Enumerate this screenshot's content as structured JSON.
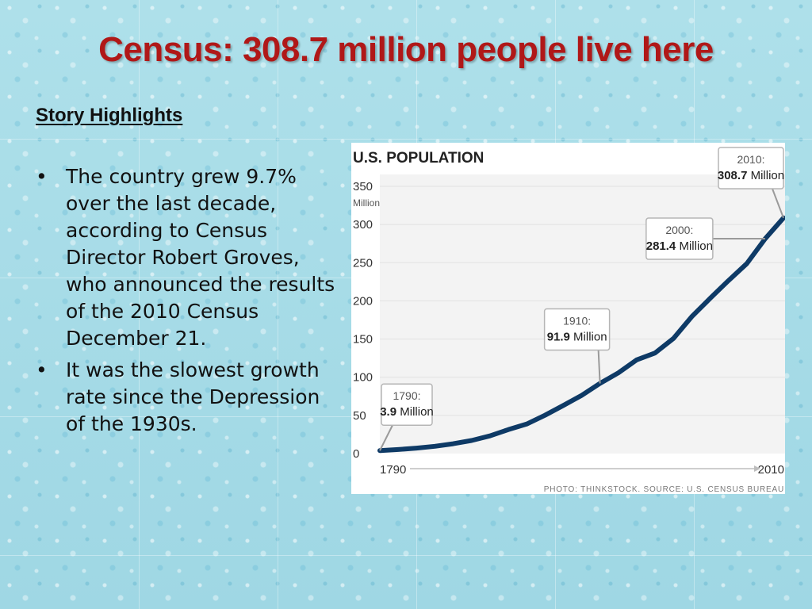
{
  "slide": {
    "title": "Census: 308.7 million people live here",
    "subheading": "Story Highlights",
    "bullets": [
      "The country grew 9.7% over the last decade, according to Census Director Robert Groves, who announced the results of the 2010 Census December 21.",
      "It was the slowest growth rate since the Depression of the 1930s."
    ],
    "bullet_symbol": "•",
    "title_color": "#b01818"
  },
  "chart_data": {
    "type": "line",
    "title": "U.S. POPULATION",
    "unit_label": "Million",
    "x_start_label": "1790",
    "x_end_label": "2010",
    "xlim": [
      1790,
      2010
    ],
    "ylim": [
      0,
      350
    ],
    "y_ticks": [
      0,
      50,
      100,
      150,
      200,
      250,
      300,
      350
    ],
    "grid": true,
    "line_color": "#0e3a66",
    "series": [
      {
        "x": [
          1790,
          1800,
          1810,
          1820,
          1830,
          1840,
          1850,
          1860,
          1870,
          1880,
          1890,
          1900,
          1910,
          1920,
          1930,
          1940,
          1950,
          1960,
          1970,
          1980,
          1990,
          2000,
          2010
        ],
        "values": [
          3.9,
          5.3,
          7.2,
          9.6,
          12.9,
          17.1,
          23.2,
          31.4,
          38.6,
          50.2,
          63.0,
          76.2,
          91.9,
          105.7,
          122.8,
          131.7,
          150.7,
          179.3,
          203.2,
          226.5,
          248.7,
          281.4,
          308.7
        ]
      }
    ],
    "annotations": [
      {
        "year_text": "1790:",
        "value_num": "3.9",
        "value_unit": " Million",
        "x": 1790,
        "y": 3.9
      },
      {
        "year_text": "1910:",
        "value_num": "91.9",
        "value_unit": " Million",
        "x": 1910,
        "y": 91.9
      },
      {
        "year_text": "2000:",
        "value_num": "281.4",
        "value_unit": " Million",
        "x": 2000,
        "y": 281.4
      },
      {
        "year_text": "2010:",
        "value_num": "308.7",
        "value_unit": " Million",
        "x": 2010,
        "y": 308.7
      }
    ],
    "credit": "PHOTO: THINKSTOCK. SOURCE: U.S. CENSUS BUREAU"
  }
}
